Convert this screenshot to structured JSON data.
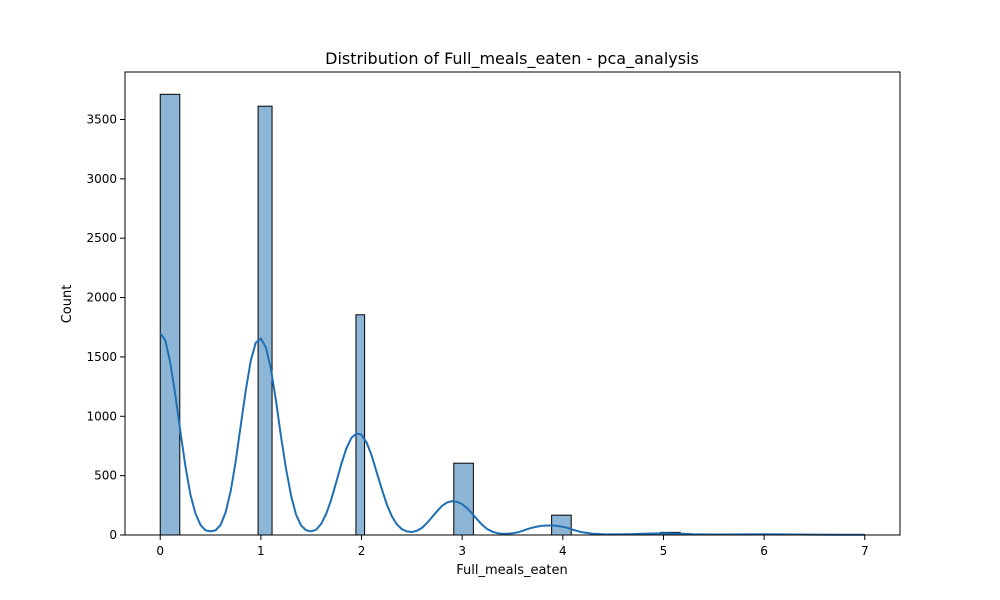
{
  "chart_data": {
    "type": "histogram",
    "title": "Distribution of Full_meals_eaten - pca_analysis",
    "xlabel": "Full_meals_eaten",
    "ylabel": "Count",
    "xlim": [
      -0.35,
      7.35
    ],
    "ylim": [
      0,
      3900
    ],
    "x_ticks": [
      0,
      1,
      2,
      3,
      4,
      5,
      6,
      7
    ],
    "x_tick_labels": [
      "0",
      "1",
      "2",
      "3",
      "4",
      "5",
      "6",
      "7"
    ],
    "y_ticks": [
      0,
      500,
      1000,
      1500,
      2000,
      2500,
      3000,
      3500
    ],
    "y_tick_labels": [
      "0",
      "500",
      "1000",
      "1500",
      "2000",
      "2500",
      "3000",
      "3500"
    ],
    "bar_color": "#8db5d6",
    "bar_edge_color": "#000000",
    "kde_color": "#1f6fb4",
    "bins": [
      {
        "x0": 0.0,
        "x1": 0.1944,
        "count": 3712
      },
      {
        "x0": 0.9722,
        "x1": 1.1111,
        "count": 3612
      },
      {
        "x0": 1.9444,
        "x1": 2.0306,
        "count": 1855
      },
      {
        "x0": 2.9167,
        "x1": 3.1111,
        "count": 605
      },
      {
        "x0": 3.8889,
        "x1": 4.0833,
        "count": 167
      },
      {
        "x0": 4.9722,
        "x1": 5.1667,
        "count": 22
      },
      {
        "x0": 5.9444,
        "x1": 6.1389,
        "count": 2
      },
      {
        "x0": 6.9167,
        "x1": 7.0,
        "count": 1
      }
    ],
    "kde": [
      [
        0.0,
        1700
      ],
      [
        0.05,
        1640
      ],
      [
        0.1,
        1450
      ],
      [
        0.15,
        1180
      ],
      [
        0.2,
        870
      ],
      [
        0.25,
        580
      ],
      [
        0.3,
        340
      ],
      [
        0.35,
        180
      ],
      [
        0.4,
        85
      ],
      [
        0.45,
        40
      ],
      [
        0.5,
        30
      ],
      [
        0.55,
        40
      ],
      [
        0.6,
        85
      ],
      [
        0.65,
        190
      ],
      [
        0.7,
        370
      ],
      [
        0.75,
        620
      ],
      [
        0.8,
        920
      ],
      [
        0.85,
        1220
      ],
      [
        0.9,
        1470
      ],
      [
        0.95,
        1620
      ],
      [
        1.0,
        1655
      ],
      [
        1.05,
        1580
      ],
      [
        1.1,
        1400
      ],
      [
        1.15,
        1130
      ],
      [
        1.2,
        830
      ],
      [
        1.25,
        560
      ],
      [
        1.3,
        330
      ],
      [
        1.35,
        170
      ],
      [
        1.4,
        80
      ],
      [
        1.45,
        40
      ],
      [
        1.5,
        30
      ],
      [
        1.55,
        45
      ],
      [
        1.6,
        95
      ],
      [
        1.65,
        180
      ],
      [
        1.7,
        300
      ],
      [
        1.75,
        450
      ],
      [
        1.8,
        600
      ],
      [
        1.85,
        730
      ],
      [
        1.9,
        820
      ],
      [
        1.95,
        855
      ],
      [
        2.0,
        845
      ],
      [
        2.05,
        780
      ],
      [
        2.1,
        670
      ],
      [
        2.15,
        530
      ],
      [
        2.2,
        390
      ],
      [
        2.25,
        260
      ],
      [
        2.3,
        160
      ],
      [
        2.35,
        90
      ],
      [
        2.4,
        50
      ],
      [
        2.45,
        30
      ],
      [
        2.5,
        25
      ],
      [
        2.55,
        35
      ],
      [
        2.6,
        60
      ],
      [
        2.65,
        100
      ],
      [
        2.7,
        150
      ],
      [
        2.75,
        200
      ],
      [
        2.8,
        245
      ],
      [
        2.85,
        275
      ],
      [
        2.9,
        285
      ],
      [
        2.95,
        280
      ],
      [
        3.0,
        260
      ],
      [
        3.05,
        225
      ],
      [
        3.1,
        180
      ],
      [
        3.15,
        130
      ],
      [
        3.2,
        85
      ],
      [
        3.25,
        50
      ],
      [
        3.3,
        28
      ],
      [
        3.35,
        15
      ],
      [
        3.4,
        10
      ],
      [
        3.45,
        10
      ],
      [
        3.5,
        15
      ],
      [
        3.55,
        22
      ],
      [
        3.6,
        35
      ],
      [
        3.65,
        50
      ],
      [
        3.7,
        62
      ],
      [
        3.75,
        72
      ],
      [
        3.8,
        78
      ],
      [
        3.85,
        80
      ],
      [
        3.9,
        80
      ],
      [
        3.95,
        76
      ],
      [
        4.0,
        70
      ],
      [
        4.05,
        60
      ],
      [
        4.1,
        45
      ],
      [
        4.15,
        32
      ],
      [
        4.2,
        22
      ],
      [
        4.3,
        10
      ],
      [
        4.4,
        6
      ],
      [
        4.5,
        5
      ],
      [
        4.6,
        6
      ],
      [
        4.7,
        8
      ],
      [
        4.8,
        11
      ],
      [
        4.9,
        13
      ],
      [
        5.0,
        14
      ],
      [
        5.1,
        13
      ],
      [
        5.2,
        10
      ],
      [
        5.3,
        7
      ],
      [
        5.5,
        4
      ],
      [
        5.8,
        5
      ],
      [
        6.0,
        6
      ],
      [
        6.2,
        5
      ],
      [
        6.5,
        3
      ],
      [
        6.8,
        2
      ],
      [
        7.0,
        2
      ]
    ]
  }
}
